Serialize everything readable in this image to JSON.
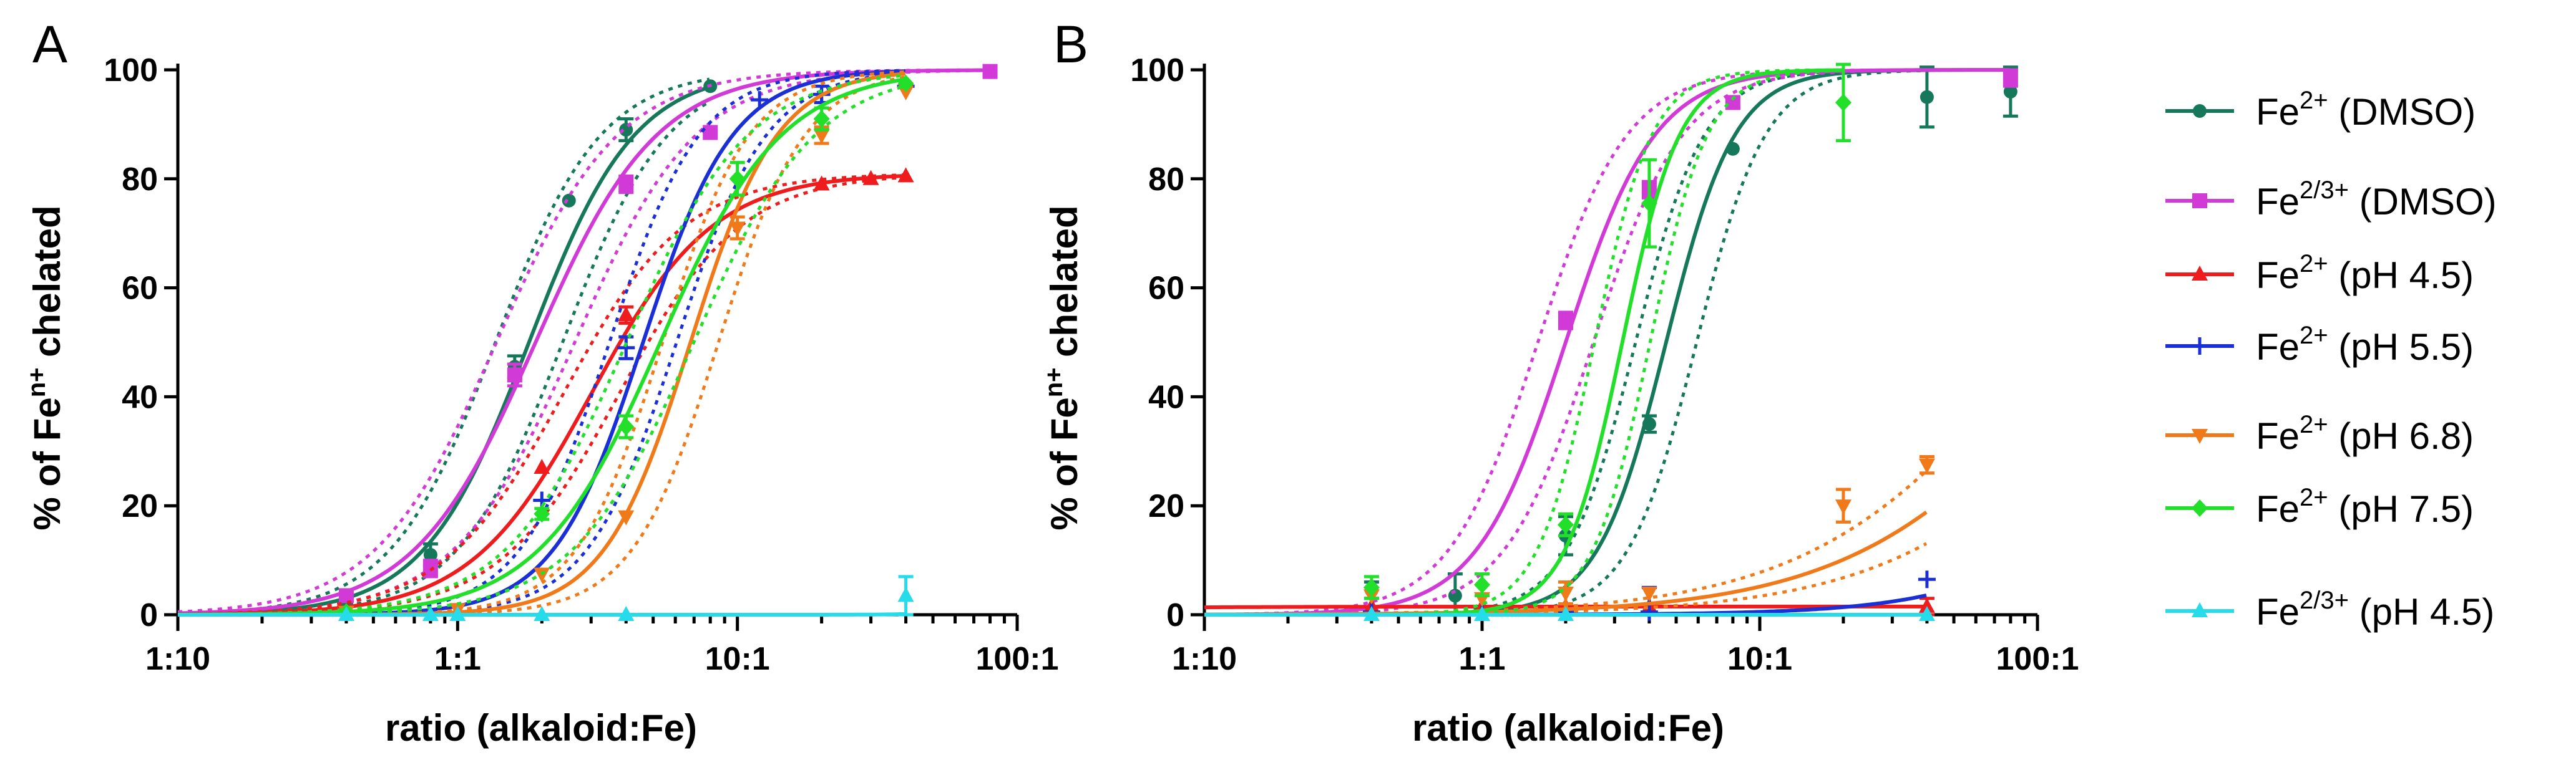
{
  "legend": [
    {
      "key": "fe2_dmso",
      "base": "Fe",
      "sup": "2+",
      "suffix": " (DMSO)",
      "color": "#16785a",
      "marker": "circle"
    },
    {
      "key": "fe23_dmso",
      "base": "Fe",
      "sup": "2/3+",
      "suffix": " (DMSO)",
      "color": "#d13ad6",
      "marker": "square"
    },
    {
      "key": "fe2_ph45",
      "base": "Fe",
      "sup": "2+",
      "suffix": " (pH 4.5)",
      "color": "#ee1c1c",
      "marker": "triangle"
    },
    {
      "key": "fe2_ph55",
      "base": "Fe",
      "sup": "2+",
      "suffix": " (pH 5.5)",
      "color": "#1b2fd6",
      "marker": "plus"
    },
    {
      "key": "fe2_ph68",
      "base": "Fe",
      "sup": "2+",
      "suffix": " (pH 6.8)",
      "color": "#f07a1a",
      "marker": "triangle-down"
    },
    {
      "key": "fe2_ph75",
      "base": "Fe",
      "sup": "2+",
      "suffix": " (pH 7.5)",
      "color": "#22e02a",
      "marker": "diamond"
    },
    {
      "key": "fe23_ph45",
      "base": "Fe",
      "sup": "2/3+",
      "suffix": " (pH 4.5)",
      "color": "#26dcea",
      "marker": "triangle"
    }
  ],
  "chart_data": [
    {
      "panel": "A",
      "type": "scatter",
      "x_scale": "log10",
      "xlim": [
        0.1,
        100
      ],
      "ylim": [
        0,
        100
      ],
      "xticks": [
        {
          "value": 0.1,
          "label": "1:10"
        },
        {
          "value": 1,
          "label": "1:1"
        },
        {
          "value": 10,
          "label": "10:1"
        },
        {
          "value": 100,
          "label": "100:1"
        }
      ],
      "yticks": [
        0,
        20,
        40,
        60,
        80,
        100
      ],
      "xlabel": "ratio (alkaloid:Fe)",
      "ylabel": {
        "pre": "% of Fe",
        "sup": "n+",
        "post": " chelated"
      },
      "series": [
        {
          "key": "fe2_dmso",
          "x": [
            0.4,
            0.8,
            1.6,
            2.5,
            4,
            8
          ],
          "y": [
            2,
            11,
            45.5,
            76,
            89,
            97
          ],
          "err": [
            0,
            2,
            2,
            0,
            2,
            0
          ],
          "fit": {
            "top": 100,
            "ec50": 1.8,
            "hill": 2.3
          },
          "ci": 0.12
        },
        {
          "key": "fe23_dmso",
          "x": [
            0.4,
            0.8,
            1.6,
            4,
            8,
            80
          ],
          "y": [
            3.5,
            8.5,
            44,
            79,
            88.5,
            99.7
          ],
          "err": [
            0,
            1.5,
            2,
            1.5,
            0,
            0
          ],
          "fit": {
            "top": 100,
            "ec50": 1.9,
            "hill": 2.0
          },
          "ci": 0.14
        },
        {
          "key": "fe2_ph45",
          "x": [
            2,
            4,
            20,
            30,
            40
          ],
          "y": [
            27,
            55,
            79,
            80,
            80.5
          ],
          "err": [
            0,
            1.5,
            0,
            0,
            0
          ],
          "fit": {
            "top": 81,
            "ec50": 3.0,
            "hill": 2.0
          },
          "ci": 0.1
        },
        {
          "key": "fe2_ph55",
          "x": [
            2,
            4,
            12,
            20,
            40
          ],
          "y": [
            21,
            49,
            94.5,
            95.5,
            97
          ],
          "err": [
            0,
            2,
            0,
            1.5,
            0
          ],
          "fit": {
            "top": 100,
            "ec50": 4.6,
            "hill": 2.7
          },
          "ci": 0.12
        },
        {
          "key": "fe2_ph68",
          "x": [
            0.4,
            1,
            2,
            4,
            10,
            20,
            40
          ],
          "y": [
            0.5,
            1,
            7.5,
            18,
            71,
            88,
            96
          ],
          "err": [
            0,
            0,
            0,
            0,
            2,
            1.5,
            0
          ],
          "fit": {
            "top": 100,
            "ec50": 6.8,
            "hill": 2.8
          },
          "ci": 0.1
        },
        {
          "key": "fe2_ph75",
          "x": [
            0.4,
            2,
            4,
            10,
            20,
            40
          ],
          "y": [
            0.5,
            18.5,
            34.5,
            80,
            91,
            97.5
          ],
          "err": [
            0,
            1,
            2,
            3,
            2,
            0
          ],
          "fit": {
            "top": 100,
            "ec50": 5.3,
            "hill": 2.0
          },
          "ci": 0.12
        },
        {
          "key": "fe23_ph45",
          "x": [
            0.4,
            0.8,
            1,
            2,
            4,
            40
          ],
          "y": [
            0,
            0,
            0,
            0,
            0,
            3.5
          ],
          "err": [
            0,
            0,
            0,
            0,
            0,
            3.5
          ],
          "fit": {
            "top": 100,
            "ec50": 150,
            "hill": 5.0
          },
          "ci": 0
        }
      ]
    },
    {
      "panel": "B",
      "type": "scatter",
      "x_scale": "log10",
      "xlim": [
        0.1,
        100
      ],
      "ylim": [
        0,
        100
      ],
      "xticks": [
        {
          "value": 0.1,
          "label": "1:10"
        },
        {
          "value": 1,
          "label": "1:1"
        },
        {
          "value": 10,
          "label": "10:1"
        },
        {
          "value": 100,
          "label": "100:1"
        }
      ],
      "yticks": [
        0,
        20,
        40,
        60,
        80,
        100
      ],
      "xlabel": "ratio (alkaloid:Fe)",
      "ylabel": {
        "pre": "% of Fe",
        "sup": "n+",
        "post": " chelated"
      },
      "series": [
        {
          "key": "fe2_dmso",
          "x": [
            0.4,
            0.8,
            2,
            4,
            8,
            40,
            80
          ],
          "y": [
            4.5,
            3.5,
            14.5,
            35,
            85.5,
            95,
            96
          ],
          "err": [
            1.5,
            4,
            3.5,
            1.5,
            0,
            5.5,
            4.5
          ],
          "fit": {
            "top": 100,
            "ec50": 4.6,
            "hill": 3.5
          },
          "ci": 0.11
        },
        {
          "key": "fe23_dmso",
          "x": [
            2,
            4,
            8,
            80
          ],
          "y": [
            54,
            78,
            94,
            98.5
          ],
          "err": [
            1.5,
            1.5,
            1,
            1.5
          ],
          "fit": {
            "top": 100,
            "ec50": 2.0,
            "hill": 2.7
          },
          "ci": 0.1
        },
        {
          "key": "fe2_ph45",
          "x": [
            0.4,
            1,
            2,
            4,
            40
          ],
          "y": [
            1.5,
            1.5,
            1.5,
            1.5,
            1.5
          ],
          "err": [
            0,
            0,
            0,
            0,
            1.5
          ],
          "fit": {
            "top": 1.5,
            "ec50": 0.01,
            "hill": 1.0
          },
          "ci": 0
        },
        {
          "key": "fe2_ph55",
          "x": [
            0.4,
            1,
            2,
            4,
            40
          ],
          "y": [
            0.5,
            0.5,
            0.5,
            0.5,
            6.5
          ],
          "err": [
            0,
            0,
            0,
            4.5,
            0
          ],
          "fit": {
            "top": 100,
            "ec50": 420,
            "hill": 1.4
          },
          "ci": 0
        },
        {
          "key": "fe2_ph68",
          "x": [
            0.4,
            1,
            2,
            4,
            20,
            40
          ],
          "y": [
            3.5,
            3,
            4,
            4,
            20,
            27.5
          ],
          "err": [
            0,
            0,
            2,
            0,
            3,
            1.5
          ],
          "fit": {
            "top": 100,
            "ec50": 160,
            "hill": 1.05
          },
          "ci": 0.18
        },
        {
          "key": "fe2_ph75",
          "x": [
            0.4,
            1,
            2,
            4,
            20
          ],
          "y": [
            5,
            5.5,
            16.5,
            75.5,
            94
          ],
          "err": [
            2,
            2,
            2,
            8,
            7
          ],
          "fit": {
            "top": 100,
            "ec50": 3.2,
            "hill": 4.2
          },
          "ci": 0.1
        },
        {
          "key": "fe23_ph45",
          "x": [
            0.4,
            1,
            2,
            40
          ],
          "y": [
            0,
            0,
            0,
            0
          ],
          "err": [
            0,
            0,
            0,
            0
          ],
          "fit": {
            "top": 0,
            "ec50": 1,
            "hill": 1.0
          },
          "ci": 0
        }
      ]
    }
  ]
}
